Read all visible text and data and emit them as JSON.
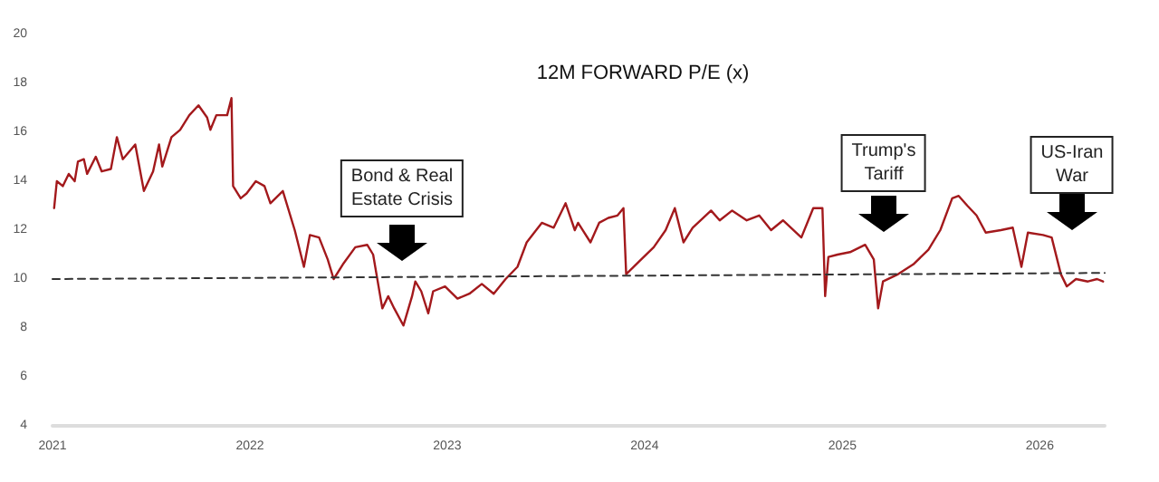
{
  "chart_data": {
    "type": "line",
    "title": "12M FORWARD P/E (x)",
    "xlim": [
      "2021-01-01",
      "2026-05-01"
    ],
    "xticks": [
      "2021",
      "2022",
      "2023",
      "2024",
      "2025",
      "2026"
    ],
    "ylim": [
      4,
      20
    ],
    "yticks": [
      4,
      6,
      8,
      10,
      12,
      14,
      16,
      18,
      20
    ],
    "grid": false,
    "marker": "none",
    "series": [
      {
        "color": "#a3191c",
        "line_style": "solid",
        "x": [
          "2021-01-04",
          "2021-01-09",
          "2021-01-20",
          "2021-01-31",
          "2021-02-11",
          "2021-02-17",
          "2021-02-28",
          "2021-03-06",
          "2021-03-22",
          "2021-04-02",
          "2021-04-19",
          "2021-04-30",
          "2021-05-11",
          "2021-06-03",
          "2021-06-19",
          "2021-07-06",
          "2021-07-17",
          "2021-07-23",
          "2021-08-09",
          "2021-08-25",
          "2021-09-11",
          "2021-09-28",
          "2021-10-14",
          "2021-10-20",
          "2021-10-31",
          "2021-11-11",
          "2021-11-20",
          "2021-11-28",
          "2021-12-01",
          "2021-12-15",
          "2021-12-26",
          "2022-01-12",
          "2022-01-28",
          "2022-02-08",
          "2022-03-03",
          "2022-03-25",
          "2022-04-11",
          "2022-04-22",
          "2022-05-09",
          "2022-05-25",
          "2022-06-05",
          "2022-06-22",
          "2022-07-15",
          "2022-08-06",
          "2022-08-17",
          "2022-09-03",
          "2022-09-14",
          "2022-09-25",
          "2022-10-12",
          "2022-10-28",
          "2022-11-03",
          "2022-11-14",
          "2022-11-27",
          "2022-12-06",
          "2022-12-28",
          "2023-01-20",
          "2023-02-11",
          "2023-03-06",
          "2023-03-28",
          "2023-04-19",
          "2023-05-11",
          "2023-05-28",
          "2023-06-25",
          "2023-07-17",
          "2023-08-08",
          "2023-08-25",
          "2023-08-31",
          "2023-09-23",
          "2023-10-09",
          "2023-10-26",
          "2023-11-12",
          "2023-11-23",
          "2023-11-28",
          "2023-12-21",
          "2024-01-18",
          "2024-02-09",
          "2024-02-26",
          "2024-03-13",
          "2024-03-30",
          "2024-05-03",
          "2024-05-19",
          "2024-06-11",
          "2024-07-08",
          "2024-07-31",
          "2024-08-22",
          "2024-09-13",
          "2024-10-17",
          "2024-11-08",
          "2024-11-25",
          "2024-11-30",
          "2024-12-06",
          "2024-12-23",
          "2025-01-15",
          "2025-02-12",
          "2025-02-28",
          "2025-03-08",
          "2025-03-17",
          "2025-04-14",
          "2025-05-12",
          "2025-06-09",
          "2025-07-01",
          "2025-07-23",
          "2025-08-04",
          "2025-08-20",
          "2025-09-06",
          "2025-09-23",
          "2025-10-21",
          "2025-11-12",
          "2025-11-28",
          "2025-12-10",
          "2026-01-07",
          "2026-01-23",
          "2026-02-09",
          "2026-02-20",
          "2026-03-09",
          "2026-03-31",
          "2026-04-17",
          "2026-04-28"
        ],
        "values": [
          12.9,
          14.0,
          13.8,
          14.3,
          14.0,
          14.8,
          14.9,
          14.3,
          15.0,
          14.4,
          14.5,
          15.8,
          14.9,
          15.5,
          13.6,
          14.4,
          15.5,
          14.6,
          15.8,
          16.1,
          16.7,
          17.1,
          16.6,
          16.1,
          16.7,
          16.7,
          16.7,
          17.4,
          13.8,
          13.3,
          13.5,
          14.0,
          13.8,
          13.1,
          13.6,
          12.0,
          10.5,
          11.8,
          11.7,
          10.8,
          10.0,
          10.6,
          11.3,
          11.4,
          11.0,
          8.8,
          9.3,
          8.8,
          8.1,
          9.3,
          9.9,
          9.5,
          8.6,
          9.5,
          9.7,
          9.2,
          9.4,
          9.8,
          9.4,
          10.0,
          10.5,
          11.5,
          12.3,
          12.1,
          13.1,
          12.0,
          12.3,
          11.5,
          12.3,
          12.5,
          12.6,
          12.9,
          10.2,
          10.7,
          11.3,
          12.0,
          12.9,
          11.5,
          12.1,
          12.8,
          12.4,
          12.8,
          12.4,
          12.6,
          12.0,
          12.4,
          11.7,
          12.9,
          12.9,
          9.3,
          10.9,
          11.0,
          11.1,
          11.4,
          10.8,
          8.8,
          9.9,
          10.2,
          10.6,
          11.2,
          12.0,
          13.3,
          13.4,
          13.0,
          12.6,
          11.9,
          12.0,
          12.1,
          10.5,
          11.9,
          11.8,
          11.7,
          10.2,
          9.7,
          10.0,
          9.9,
          10.0,
          9.9
        ]
      },
      {
        "color": "#333333",
        "line_style": "dashed",
        "x": [
          "2021-01-01",
          "2026-05-01"
        ],
        "values": [
          10.0,
          10.25
        ]
      }
    ],
    "annotations": [
      "Bond & Real\nEstate Crisis",
      "Trump's\nTariff",
      "US-Iran\nWar"
    ]
  }
}
